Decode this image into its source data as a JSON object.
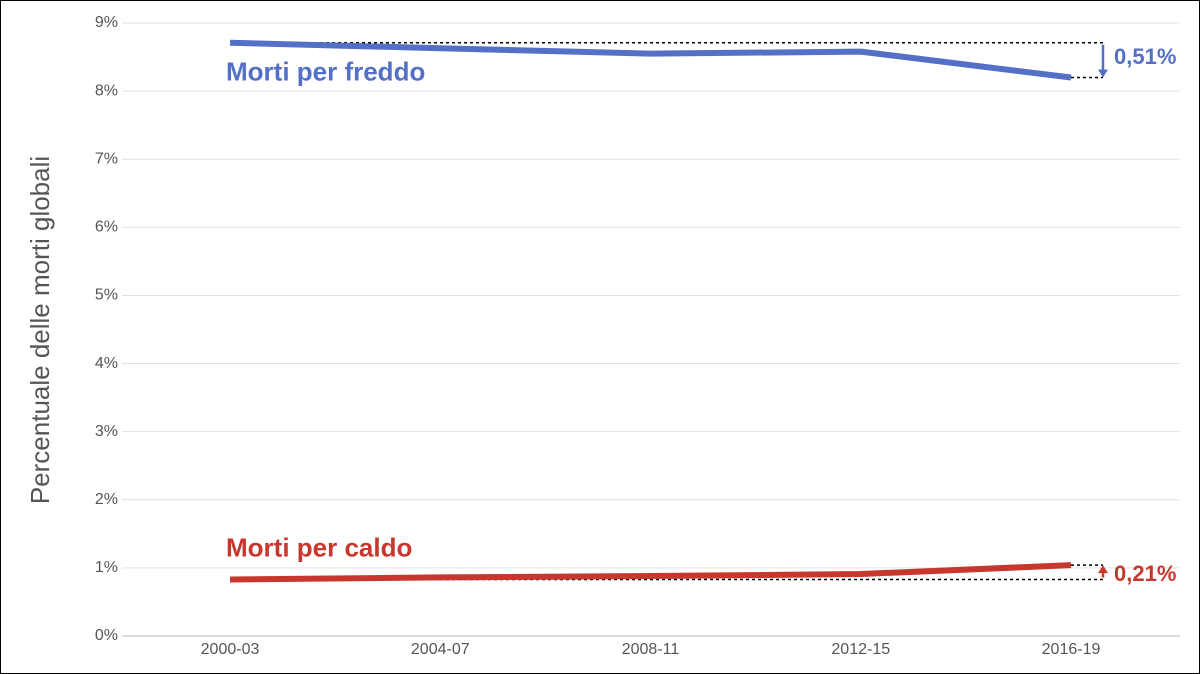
{
  "chart_data": {
    "type": "line",
    "y_label": "Percentuale delle morti globali",
    "categories": [
      "2000-03",
      "2004-07",
      "2008-11",
      "2012-15",
      "2016-19"
    ],
    "series": [
      {
        "name": "Morti per freddo",
        "color": "#5470c6",
        "values": [
          8.71,
          8.63,
          8.55,
          8.58,
          8.2
        ],
        "annotation": "0,51%"
      },
      {
        "name": "Morti per caldo",
        "color": "#c8372d",
        "values": [
          0.83,
          0.86,
          0.88,
          0.91,
          1.04
        ],
        "annotation": "0,21%"
      }
    ],
    "ylim": [
      0,
      9
    ],
    "yticks": [
      {
        "value": 0,
        "label": "0%"
      },
      {
        "value": 1,
        "label": "1%"
      },
      {
        "value": 2,
        "label": "2%"
      },
      {
        "value": 3,
        "label": "3%"
      },
      {
        "value": 4,
        "label": "4%"
      },
      {
        "value": 5,
        "label": "5%"
      },
      {
        "value": 6,
        "label": "6%"
      },
      {
        "value": 7,
        "label": "7%"
      },
      {
        "value": 8,
        "label": "8%"
      },
      {
        "value": 9,
        "label": "9%"
      }
    ],
    "grid": true
  }
}
